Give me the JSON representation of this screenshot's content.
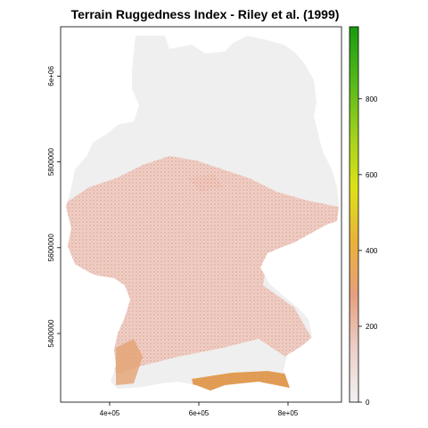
{
  "title": "Terrain Ruggedness Index - Riley et al. (1999)",
  "x_axis": {
    "ticks": [
      {
        "value": 400000,
        "label": "4e+05"
      },
      {
        "value": 600000,
        "label": "6e+05"
      },
      {
        "value": 800000,
        "label": "8e+05"
      }
    ],
    "range": [
      290000,
      920000
    ]
  },
  "y_axis": {
    "ticks": [
      {
        "value": 5400000,
        "label": "5400000"
      },
      {
        "value": 5600000,
        "label": "5600000"
      },
      {
        "value": 5800000,
        "label": "5800000"
      },
      {
        "value": 6000000,
        "label": "6e+06"
      }
    ],
    "range": [
      5240000,
      6115000
    ]
  },
  "legend": {
    "ticks": [
      {
        "value": 0,
        "label": "0"
      },
      {
        "value": 200,
        "label": "200"
      },
      {
        "value": 400,
        "label": "400"
      },
      {
        "value": 600,
        "label": "600"
      },
      {
        "value": 800,
        "label": "800"
      }
    ],
    "range": [
      0,
      990
    ],
    "colors": [
      "#f2f2f2",
      "#eccfc8",
      "#e5a07e",
      "#e8b23a",
      "#dde218",
      "#9fd01c",
      "#53b81a",
      "#1a9a10"
    ]
  },
  "map": {
    "region": "Germany",
    "fill_low": "#efefef",
    "fill_mid": "#e7aa9a",
    "fill_high": "#e1a23c"
  }
}
